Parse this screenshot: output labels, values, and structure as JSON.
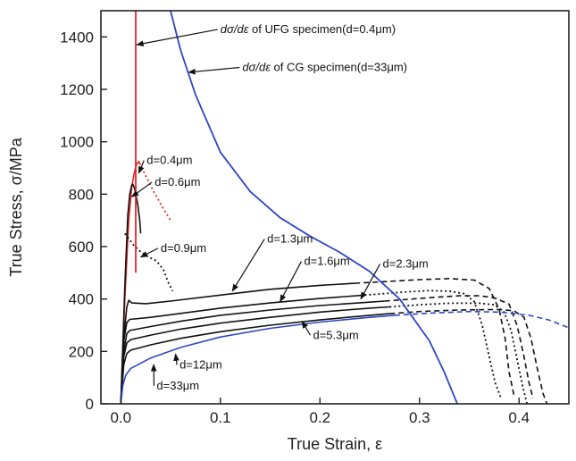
{
  "chart_data": {
    "type": "line",
    "xlabel": "True Strain, ε",
    "ylabel": "True Stress, σ/MPa",
    "xlim": [
      -0.02,
      0.45
    ],
    "ylim": [
      0,
      1500
    ],
    "xticks": [
      0.0,
      0.1,
      0.2,
      0.3,
      0.4
    ],
    "xtick_labels": [
      "0.0",
      "0.1",
      "0.2",
      "0.3",
      "0.4"
    ],
    "yticks": [
      0,
      200,
      400,
      600,
      800,
      1000,
      1200,
      1400
    ],
    "ytick_labels": [
      "0",
      "200",
      "400",
      "600",
      "800",
      "1000",
      "1200",
      "1400"
    ],
    "grid": false,
    "colors": {
      "axis": "#222222",
      "curve": "#111111",
      "red": "#e8262a",
      "blue": "#2f45c4"
    },
    "annotations": [
      {
        "id": "ann-ufg",
        "italic_prefix": "dσ/dε",
        "text": " of UFG specimen(d=0.4μm)",
        "point": [
          0.016,
          1370
        ],
        "text_pos": [
          0.1,
          1415
        ]
      },
      {
        "id": "ann-cg",
        "italic_prefix": "dσ/dε",
        "text": " of CG specimen(d=33μm)",
        "point": [
          0.068,
          1265
        ],
        "text_pos": [
          0.122,
          1270
        ]
      },
      {
        "id": "ann-d04",
        "italic_prefix": "",
        "text": "d=0.4μm",
        "point": [
          0.018,
          880
        ],
        "text_pos": [
          0.026,
          915
        ]
      },
      {
        "id": "ann-d06",
        "italic_prefix": "",
        "text": "d=0.6μm",
        "point": [
          0.011,
          790
        ],
        "text_pos": [
          0.034,
          832
        ]
      },
      {
        "id": "ann-d09",
        "italic_prefix": "",
        "text": "d=0.9μm",
        "point": [
          0.02,
          560
        ],
        "text_pos": [
          0.04,
          580
        ]
      },
      {
        "id": "ann-d13",
        "italic_prefix": "",
        "text": "d=1.3μm",
        "point": [
          0.112,
          430
        ],
        "text_pos": [
          0.147,
          615
        ]
      },
      {
        "id": "ann-d16",
        "italic_prefix": "",
        "text": "d=1.6μm",
        "point": [
          0.16,
          390
        ],
        "text_pos": [
          0.184,
          530
        ]
      },
      {
        "id": "ann-d23",
        "italic_prefix": "",
        "text": "d=2.3μm",
        "point": [
          0.241,
          400
        ],
        "text_pos": [
          0.263,
          520
        ]
      },
      {
        "id": "ann-d53",
        "italic_prefix": "",
        "text": "d=5.3μm",
        "point": [
          0.182,
          315
        ],
        "text_pos": [
          0.193,
          248
        ]
      },
      {
        "id": "ann-d12",
        "italic_prefix": "",
        "text": "d=12μm",
        "point": [
          0.055,
          190
        ],
        "text_pos": [
          0.059,
          135
        ]
      },
      {
        "id": "ann-d33",
        "italic_prefix": "",
        "text": "d=33μm",
        "point": [
          0.033,
          150
        ],
        "text_pos": [
          0.036,
          55
        ]
      }
    ],
    "series": [
      {
        "id": "d04",
        "color": "#e8262a",
        "dash": "",
        "width": 1.6,
        "points": [
          [
            0.0,
            0
          ],
          [
            0.004,
            400
          ],
          [
            0.008,
            700
          ],
          [
            0.011,
            830
          ],
          [
            0.014,
            890
          ],
          [
            0.016,
            915
          ],
          [
            0.018,
            925
          ],
          [
            0.019,
            918
          ]
        ]
      },
      {
        "id": "d04-tail",
        "color": "#e8262a",
        "dash": "2 3",
        "width": 1.8,
        "points": [
          [
            0.019,
            918
          ],
          [
            0.025,
            870
          ],
          [
            0.033,
            810
          ],
          [
            0.042,
            750
          ],
          [
            0.05,
            700
          ]
        ]
      },
      {
        "id": "d06",
        "color": "#111111",
        "dash": "",
        "width": 1.6,
        "points": [
          [
            0.0,
            0
          ],
          [
            0.004,
            450
          ],
          [
            0.007,
            720
          ],
          [
            0.009,
            800
          ],
          [
            0.011,
            835
          ],
          [
            0.012,
            838
          ],
          [
            0.014,
            820
          ],
          [
            0.017,
            760
          ],
          [
            0.019,
            700
          ],
          [
            0.02,
            650
          ]
        ]
      },
      {
        "id": "d09",
        "color": "#111111",
        "dash": "2 3",
        "width": 1.8,
        "points": [
          [
            0.004,
            650
          ],
          [
            0.008,
            630
          ],
          [
            0.013,
            605
          ],
          [
            0.02,
            580
          ],
          [
            0.028,
            560
          ],
          [
            0.036,
            545
          ],
          [
            0.043,
            510
          ],
          [
            0.048,
            460
          ],
          [
            0.052,
            430
          ]
        ]
      },
      {
        "id": "d13",
        "color": "#111111",
        "dash": "",
        "width": 1.6,
        "points": [
          [
            0.0,
            0
          ],
          [
            0.003,
            250
          ],
          [
            0.006,
            370
          ],
          [
            0.008,
            395
          ],
          [
            0.011,
            385
          ],
          [
            0.025,
            382
          ],
          [
            0.05,
            392
          ],
          [
            0.1,
            415
          ],
          [
            0.15,
            437
          ],
          [
            0.2,
            452
          ],
          [
            0.235,
            460
          ]
        ]
      },
      {
        "id": "d13-tail",
        "color": "#111111",
        "dash": "6 4",
        "width": 1.6,
        "points": [
          [
            0.235,
            460
          ],
          [
            0.3,
            474
          ],
          [
            0.33,
            478
          ],
          [
            0.355,
            472
          ],
          [
            0.37,
            440
          ],
          [
            0.38,
            360
          ],
          [
            0.386,
            250
          ],
          [
            0.39,
            120
          ],
          [
            0.395,
            30
          ]
        ]
      },
      {
        "id": "d16",
        "color": "#111111",
        "dash": "",
        "width": 1.6,
        "points": [
          [
            0.0,
            0
          ],
          [
            0.003,
            240
          ],
          [
            0.006,
            310
          ],
          [
            0.009,
            322
          ],
          [
            0.03,
            330
          ],
          [
            0.06,
            345
          ],
          [
            0.1,
            365
          ],
          [
            0.15,
            385
          ],
          [
            0.2,
            402
          ],
          [
            0.245,
            415
          ]
        ]
      },
      {
        "id": "d16-tail",
        "color": "#111111",
        "dash": "2 3",
        "width": 1.8,
        "points": [
          [
            0.245,
            415
          ],
          [
            0.29,
            428
          ],
          [
            0.31,
            432
          ],
          [
            0.33,
            430
          ],
          [
            0.345,
            420
          ],
          [
            0.355,
            390
          ],
          [
            0.363,
            300
          ],
          [
            0.37,
            180
          ],
          [
            0.376,
            80
          ],
          [
            0.382,
            20
          ]
        ]
      },
      {
        "id": "d23",
        "color": "#111111",
        "dash": "",
        "width": 1.6,
        "points": [
          [
            0.0,
            0
          ],
          [
            0.003,
            200
          ],
          [
            0.006,
            268
          ],
          [
            0.009,
            280
          ],
          [
            0.03,
            295
          ],
          [
            0.06,
            315
          ],
          [
            0.1,
            338
          ],
          [
            0.15,
            358
          ],
          [
            0.2,
            375
          ],
          [
            0.25,
            388
          ],
          [
            0.265,
            392
          ]
        ]
      },
      {
        "id": "d23-tail",
        "color": "#111111",
        "dash": "6 4",
        "width": 1.6,
        "points": [
          [
            0.265,
            392
          ],
          [
            0.31,
            405
          ],
          [
            0.34,
            412
          ],
          [
            0.36,
            412
          ],
          [
            0.375,
            405
          ],
          [
            0.39,
            380
          ],
          [
            0.398,
            300
          ],
          [
            0.405,
            180
          ],
          [
            0.41,
            80
          ],
          [
            0.414,
            20
          ]
        ]
      },
      {
        "id": "d53",
        "color": "#111111",
        "dash": "",
        "width": 1.6,
        "points": [
          [
            0.0,
            0
          ],
          [
            0.003,
            180
          ],
          [
            0.006,
            232
          ],
          [
            0.01,
            245
          ],
          [
            0.03,
            262
          ],
          [
            0.06,
            285
          ],
          [
            0.1,
            308
          ],
          [
            0.15,
            330
          ],
          [
            0.2,
            350
          ],
          [
            0.25,
            365
          ],
          [
            0.27,
            370
          ]
        ]
      },
      {
        "id": "d53-tail",
        "color": "#111111",
        "dash": "2 3",
        "width": 1.8,
        "points": [
          [
            0.27,
            370
          ],
          [
            0.3,
            378
          ],
          [
            0.33,
            384
          ],
          [
            0.36,
            384
          ],
          [
            0.375,
            378
          ],
          [
            0.385,
            350
          ],
          [
            0.392,
            280
          ],
          [
            0.398,
            170
          ],
          [
            0.404,
            60
          ],
          [
            0.408,
            0
          ]
        ]
      },
      {
        "id": "d12",
        "color": "#111111",
        "dash": "",
        "width": 1.6,
        "points": [
          [
            0.0,
            0
          ],
          [
            0.003,
            150
          ],
          [
            0.006,
            192
          ],
          [
            0.01,
            205
          ],
          [
            0.03,
            225
          ],
          [
            0.06,
            250
          ],
          [
            0.1,
            275
          ],
          [
            0.15,
            300
          ],
          [
            0.2,
            320
          ],
          [
            0.25,
            338
          ],
          [
            0.27,
            344
          ]
        ]
      },
      {
        "id": "d12-tail",
        "color": "#111111",
        "dash": "6 4",
        "width": 1.6,
        "points": [
          [
            0.27,
            344
          ],
          [
            0.3,
            352
          ],
          [
            0.34,
            358
          ],
          [
            0.38,
            360
          ],
          [
            0.395,
            355
          ],
          [
            0.405,
            330
          ],
          [
            0.412,
            250
          ],
          [
            0.418,
            140
          ],
          [
            0.424,
            40
          ],
          [
            0.428,
            0
          ]
        ]
      },
      {
        "id": "d33",
        "color": "#2f45c4",
        "dash": "",
        "width": 1.6,
        "points": [
          [
            0.0,
            0
          ],
          [
            0.002,
            70
          ],
          [
            0.005,
            110
          ],
          [
            0.01,
            135
          ],
          [
            0.03,
            175
          ],
          [
            0.06,
            215
          ],
          [
            0.1,
            255
          ],
          [
            0.15,
            288
          ],
          [
            0.2,
            312
          ],
          [
            0.25,
            330
          ],
          [
            0.275,
            338
          ]
        ]
      },
      {
        "id": "d33-tail",
        "color": "#2f45c4",
        "dash": "6 4",
        "width": 1.6,
        "points": [
          [
            0.275,
            338
          ],
          [
            0.31,
            346
          ],
          [
            0.35,
            352
          ],
          [
            0.38,
            350
          ],
          [
            0.41,
            338
          ],
          [
            0.43,
            320
          ],
          [
            0.45,
            290
          ]
        ]
      },
      {
        "id": "ufg-rate",
        "color": "#e8262a",
        "dash": "",
        "width": 1.8,
        "points": [
          [
            0.015,
            500
          ],
          [
            0.015,
            1500
          ]
        ]
      },
      {
        "id": "cg-rate",
        "color": "#2f45c4",
        "dash": "",
        "width": 1.8,
        "points": [
          [
            0.05,
            1500
          ],
          [
            0.06,
            1350
          ],
          [
            0.075,
            1180
          ],
          [
            0.1,
            960
          ],
          [
            0.13,
            810
          ],
          [
            0.16,
            710
          ],
          [
            0.19,
            640
          ],
          [
            0.22,
            578
          ],
          [
            0.25,
            505
          ],
          [
            0.28,
            400
          ],
          [
            0.31,
            240
          ],
          [
            0.325,
            120
          ],
          [
            0.338,
            0
          ]
        ]
      }
    ]
  }
}
